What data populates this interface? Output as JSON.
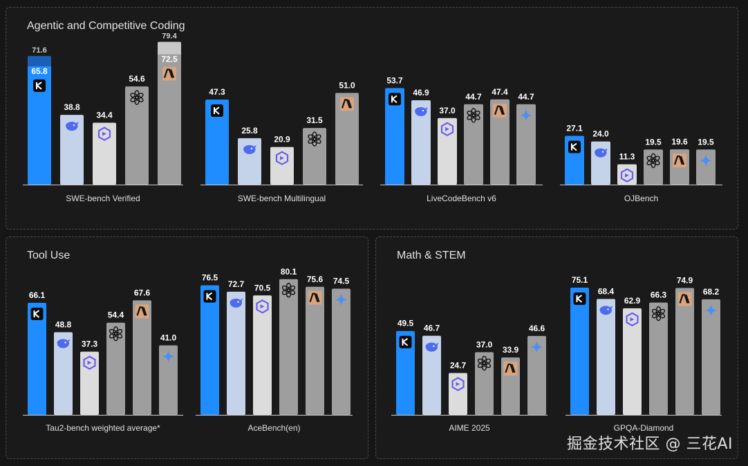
{
  "model_colors": {
    "kimi": "#1f8cff",
    "deepseek": "#c4d3ea",
    "qwen": "#dcdcdc",
    "openai": "#9e9e9e",
    "anthropic": "#9e9e9e",
    "gemini": "#9e9e9e"
  },
  "model_icons": {
    "kimi": "kimi-k-icon",
    "deepseek": "deepseek-whale-icon",
    "qwen": "qwen-icon",
    "openai": "openai-icon",
    "anthropic": "anthropic-icon",
    "gemini": "gemini-spark-icon"
  },
  "panels": [
    {
      "id": "coding",
      "title": "Agentic and Competitive Coding"
    },
    {
      "id": "tools",
      "title": "Tool Use"
    },
    {
      "id": "math",
      "title": "Math & STEM"
    }
  ],
  "watermark": "掘金技术社区 @ 三花AI",
  "chart_data": [
    {
      "type": "bar",
      "panel": "coding",
      "title": "SWE-bench Verified",
      "models": [
        "kimi",
        "deepseek",
        "qwen",
        "openai",
        "anthropic"
      ],
      "values": [
        65.8,
        38.8,
        34.4,
        54.6,
        72.5
      ],
      "extra_values": [
        71.6,
        null,
        null,
        null,
        79.4
      ],
      "ylim": [
        0,
        80
      ]
    },
    {
      "type": "bar",
      "panel": "coding",
      "title": "SWE-bench Multilingual",
      "models": [
        "kimi",
        "deepseek",
        "qwen",
        "openai",
        "anthropic"
      ],
      "values": [
        47.3,
        25.8,
        20.9,
        31.5,
        51.0
      ],
      "ylim": [
        0,
        80
      ]
    },
    {
      "type": "bar",
      "panel": "coding",
      "title": "LiveCodeBench v6",
      "models": [
        "kimi",
        "deepseek",
        "qwen",
        "openai",
        "anthropic",
        "gemini"
      ],
      "values": [
        53.7,
        46.9,
        37.0,
        44.7,
        47.4,
        44.7
      ],
      "ylim": [
        0,
        80
      ]
    },
    {
      "type": "bar",
      "panel": "coding",
      "title": "OJBench",
      "models": [
        "kimi",
        "deepseek",
        "qwen",
        "openai",
        "anthropic",
        "gemini"
      ],
      "values": [
        27.1,
        24.0,
        11.3,
        19.5,
        19.6,
        19.5
      ],
      "ylim": [
        0,
        80
      ]
    },
    {
      "type": "bar",
      "panel": "tools",
      "title": "Tau2-bench weighted average*",
      "models": [
        "kimi",
        "deepseek",
        "qwen",
        "openai",
        "anthropic",
        "gemini"
      ],
      "values": [
        66.1,
        48.8,
        37.3,
        54.4,
        67.6,
        41.0
      ],
      "ylim": [
        0,
        85
      ]
    },
    {
      "type": "bar",
      "panel": "tools",
      "title": "AceBench(en)",
      "models": [
        "kimi",
        "deepseek",
        "qwen",
        "openai",
        "anthropic",
        "gemini"
      ],
      "values": [
        76.5,
        72.7,
        70.5,
        80.1,
        75.6,
        74.5
      ],
      "ylim": [
        0,
        85
      ]
    },
    {
      "type": "bar",
      "panel": "math",
      "title": "AIME 2025",
      "models": [
        "kimi",
        "deepseek",
        "qwen",
        "openai",
        "anthropic",
        "gemini"
      ],
      "values": [
        49.5,
        46.7,
        24.7,
        37.0,
        33.9,
        46.6
      ],
      "ylim": [
        0,
        85
      ]
    },
    {
      "type": "bar",
      "panel": "math",
      "title": "GPQA-Diamond",
      "models": [
        "kimi",
        "deepseek",
        "qwen",
        "openai",
        "anthropic",
        "gemini"
      ],
      "values": [
        75.1,
        68.4,
        62.9,
        66.3,
        74.9,
        68.2
      ],
      "ylim": [
        0,
        85
      ]
    }
  ]
}
